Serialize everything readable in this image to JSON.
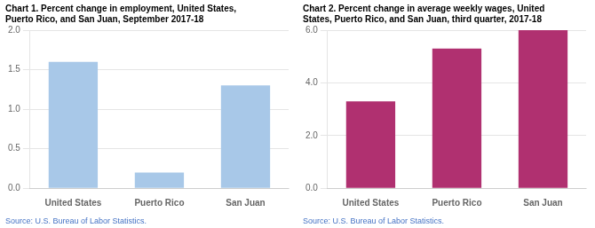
{
  "chart_data": [
    {
      "type": "bar",
      "title": "Chart 1. Percent change in employment, United States,\nPuerto Rico, and San Juan, September 2017-18",
      "categories": [
        "United States",
        "Puerto Rico",
        "San Juan"
      ],
      "values": [
        1.6,
        0.2,
        1.3
      ],
      "color": "#a8c8e8",
      "ylim": [
        0,
        2.0
      ],
      "yticks": [
        {
          "value": 0.0,
          "label": "0.0"
        },
        0.5,
        {
          "value": 1.0,
          "label": "1.0"
        },
        1.5,
        {
          "value": 2.0,
          "label": "2.0"
        }
      ],
      "grid": true,
      "annotations": [
        "Source: U.S. Bureau of Labor Statistics."
      ]
    },
    {
      "type": "bar",
      "title": "Chart 2. Percent change in average weekly wages, United\nStates, Puerto Rico, and San Juan, third quarter, 2017-18",
      "categories": [
        "United States",
        "Puerto Rico",
        "San Juan"
      ],
      "values": [
        3.3,
        5.3,
        6.0
      ],
      "color": "#b03070",
      "ylim": [
        0,
        6.0
      ],
      "yticks": [
        {
          "value": 0.0,
          "label": "0.0"
        },
        {
          "value": 2.0,
          "label": "2.0"
        },
        {
          "value": 4.0,
          "label": "4.0"
        },
        {
          "value": 6.0,
          "label": "6.0"
        }
      ],
      "grid": true,
      "annotations": [
        "Source: U.S. Bureau of Labor Statistics."
      ]
    }
  ]
}
